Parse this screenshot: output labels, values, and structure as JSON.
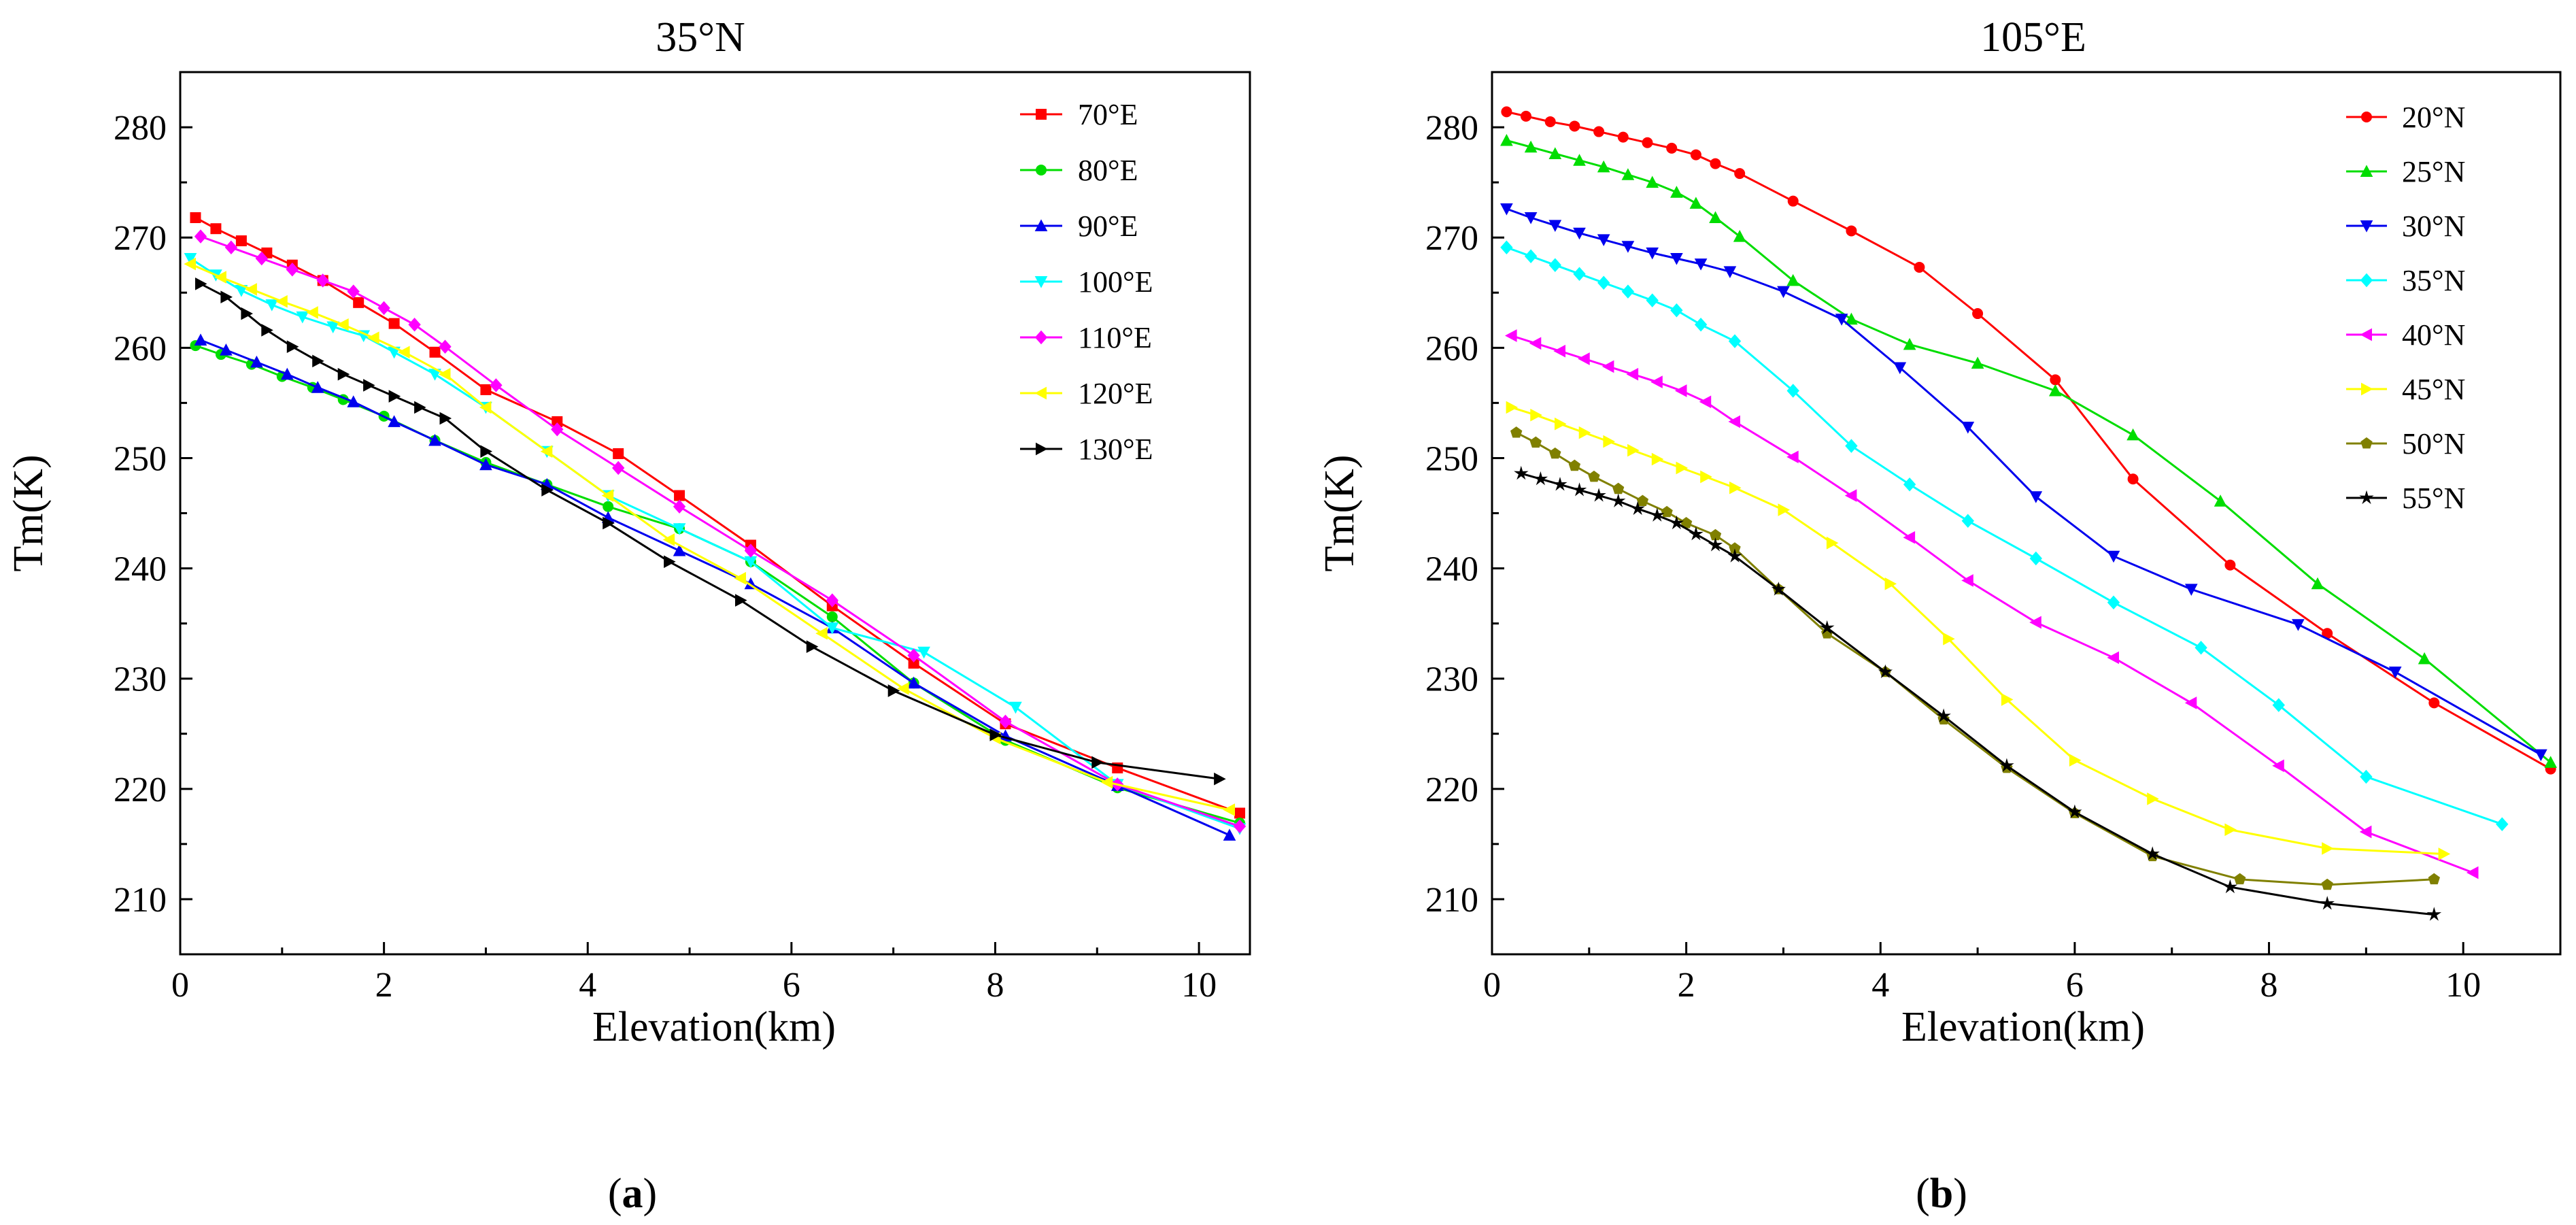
{
  "chart_data": [
    {
      "type": "line",
      "title": "35°N",
      "caption": {
        "open": "(",
        "letter": "a",
        "close": ")"
      },
      "xlabel": "Elevation(km)",
      "ylabel": "Tm(K)",
      "xlim": [
        0,
        10.5
      ],
      "ylim": [
        205,
        285
      ],
      "xticks": [
        0,
        2,
        4,
        6,
        8,
        10
      ],
      "yticks": [
        210,
        220,
        230,
        240,
        250,
        260,
        270,
        280
      ],
      "legend_position": "top-right",
      "series": [
        {
          "name": "70°E",
          "color": "#ff0000",
          "marker": "square",
          "x": [
            0.15,
            0.35,
            0.6,
            0.85,
            1.1,
            1.4,
            1.75,
            2.1,
            2.5,
            3.0,
            3.7,
            4.3,
            4.9,
            5.6,
            6.4,
            7.2,
            8.1,
            9.2,
            10.4
          ],
          "y": [
            271.8,
            270.8,
            269.7,
            268.6,
            267.5,
            266.1,
            264.1,
            262.2,
            259.6,
            256.2,
            253.3,
            250.4,
            246.6,
            242.1,
            236.6,
            231.4,
            225.9,
            221.9,
            217.8
          ]
        },
        {
          "name": "80°E",
          "color": "#00dd00",
          "marker": "circle",
          "x": [
            0.15,
            0.4,
            0.7,
            1.0,
            1.3,
            1.6,
            2.0,
            2.5,
            3.0,
            3.6,
            4.2,
            4.9,
            5.6,
            6.4,
            7.2,
            8.1,
            9.2,
            10.4
          ],
          "y": [
            260.2,
            259.4,
            258.5,
            257.4,
            256.4,
            255.3,
            253.8,
            251.6,
            249.6,
            247.6,
            245.6,
            243.6,
            240.6,
            235.6,
            229.6,
            224.4,
            220.1,
            216.9
          ]
        },
        {
          "name": "90°E",
          "color": "#0000ee",
          "marker": "triangle-up",
          "x": [
            0.2,
            0.45,
            0.75,
            1.05,
            1.35,
            1.7,
            2.1,
            2.5,
            3.0,
            3.6,
            4.2,
            4.9,
            5.6,
            6.4,
            7.2,
            8.1,
            9.2,
            10.3
          ],
          "y": [
            260.7,
            259.8,
            258.7,
            257.6,
            256.4,
            255.1,
            253.3,
            251.6,
            249.4,
            247.6,
            244.6,
            241.6,
            238.6,
            234.6,
            229.6,
            224.8,
            220.3,
            215.8
          ]
        },
        {
          "name": "100°E",
          "color": "#00ffff",
          "marker": "triangle-down",
          "x": [
            0.1,
            0.35,
            0.6,
            0.9,
            1.2,
            1.5,
            1.8,
            2.1,
            2.5,
            3.0,
            3.6,
            4.2,
            4.9,
            5.6,
            6.4,
            7.3,
            8.2,
            9.2,
            10.4
          ],
          "y": [
            268.1,
            266.6,
            265.2,
            263.9,
            262.8,
            261.9,
            261.1,
            259.6,
            257.6,
            254.6,
            250.6,
            246.6,
            243.6,
            240.6,
            234.6,
            232.4,
            227.4,
            220.4,
            216.4
          ]
        },
        {
          "name": "110°E",
          "color": "#ff00ff",
          "marker": "diamond",
          "x": [
            0.2,
            0.5,
            0.8,
            1.1,
            1.4,
            1.7,
            2.0,
            2.3,
            2.6,
            3.1,
            3.7,
            4.3,
            4.9,
            5.6,
            6.4,
            7.2,
            8.1,
            9.2,
            10.4
          ],
          "y": [
            270.1,
            269.1,
            268.1,
            267.1,
            266.1,
            265.1,
            263.6,
            262.1,
            260.1,
            256.6,
            252.6,
            249.1,
            245.6,
            241.6,
            237.1,
            232.1,
            226.1,
            220.4,
            216.6
          ]
        },
        {
          "name": "120°E",
          "color": "#ffff00",
          "marker": "triangle-left",
          "x": [
            0.1,
            0.4,
            0.7,
            1.0,
            1.3,
            1.6,
            1.9,
            2.2,
            2.6,
            3.0,
            3.6,
            4.2,
            4.8,
            5.5,
            6.3,
            7.1,
            8.0,
            9.1,
            10.3
          ],
          "y": [
            267.6,
            266.4,
            265.3,
            264.2,
            263.2,
            262.1,
            260.9,
            259.6,
            257.6,
            254.6,
            250.6,
            246.6,
            242.6,
            239.1,
            234.1,
            229.1,
            224.6,
            220.6,
            218.1
          ]
        },
        {
          "name": "130°E",
          "color": "#000000",
          "marker": "triangle-right",
          "x": [
            0.2,
            0.45,
            0.65,
            0.85,
            1.1,
            1.35,
            1.6,
            1.85,
            2.1,
            2.35,
            2.6,
            3.0,
            3.6,
            4.2,
            4.8,
            5.5,
            6.2,
            7.0,
            8.0,
            9.0,
            10.2
          ],
          "y": [
            265.8,
            264.6,
            263.1,
            261.6,
            260.1,
            258.8,
            257.6,
            256.6,
            255.6,
            254.6,
            253.6,
            250.6,
            247.1,
            244.1,
            240.6,
            237.1,
            232.9,
            228.9,
            224.9,
            222.4,
            220.9
          ]
        }
      ]
    },
    {
      "type": "line",
      "title": "105°E",
      "caption": {
        "open": "(",
        "letter": "b",
        "close": ")"
      },
      "xlabel": "Elevation(km)",
      "ylabel": "Tm(K)",
      "xlim": [
        0,
        11
      ],
      "ylim": [
        205,
        285
      ],
      "xticks": [
        0,
        2,
        4,
        6,
        8,
        10
      ],
      "yticks": [
        210,
        220,
        230,
        240,
        250,
        260,
        270,
        280
      ],
      "legend_position": "top-right",
      "series": [
        {
          "name": "20°N",
          "color": "#ff0000",
          "marker": "circle",
          "x": [
            0.15,
            0.35,
            0.6,
            0.85,
            1.1,
            1.35,
            1.6,
            1.85,
            2.1,
            2.3,
            2.55,
            3.1,
            3.7,
            4.4,
            5.0,
            5.8,
            6.6,
            7.6,
            8.6,
            9.7,
            10.9
          ],
          "y": [
            281.4,
            281.0,
            280.5,
            280.1,
            279.6,
            279.1,
            278.6,
            278.1,
            277.5,
            276.7,
            275.8,
            273.3,
            270.6,
            267.3,
            263.1,
            257.1,
            248.1,
            240.3,
            234.1,
            227.8,
            221.8
          ]
        },
        {
          "name": "25°N",
          "color": "#00dd00",
          "marker": "triangle-up",
          "x": [
            0.15,
            0.4,
            0.65,
            0.9,
            1.15,
            1.4,
            1.65,
            1.9,
            2.1,
            2.3,
            2.55,
            3.1,
            3.7,
            4.3,
            5.0,
            5.8,
            6.6,
            7.5,
            8.5,
            9.6,
            10.9
          ],
          "y": [
            278.8,
            278.2,
            277.6,
            277.0,
            276.4,
            275.7,
            275.0,
            274.1,
            273.1,
            271.8,
            270.1,
            266.1,
            262.6,
            260.3,
            258.6,
            256.1,
            252.1,
            246.1,
            238.6,
            231.8,
            222.4
          ]
        },
        {
          "name": "30°N",
          "color": "#0000ee",
          "marker": "triangle-down",
          "x": [
            0.15,
            0.4,
            0.65,
            0.9,
            1.15,
            1.4,
            1.65,
            1.9,
            2.15,
            2.45,
            3.0,
            3.6,
            4.2,
            4.9,
            5.6,
            6.4,
            7.2,
            8.3,
            9.3,
            10.8
          ],
          "y": [
            272.6,
            271.8,
            271.1,
            270.4,
            269.8,
            269.2,
            268.6,
            268.1,
            267.6,
            266.9,
            265.1,
            262.6,
            258.2,
            252.8,
            246.5,
            241.1,
            238.1,
            234.9,
            230.6,
            223.1
          ]
        },
        {
          "name": "35°N",
          "color": "#00ffff",
          "marker": "diamond",
          "x": [
            0.15,
            0.4,
            0.65,
            0.9,
            1.15,
            1.4,
            1.65,
            1.9,
            2.15,
            2.5,
            3.1,
            3.7,
            4.3,
            4.9,
            5.6,
            6.4,
            7.3,
            8.1,
            9.0,
            10.4
          ],
          "y": [
            269.1,
            268.3,
            267.5,
            266.7,
            265.9,
            265.1,
            264.3,
            263.4,
            262.1,
            260.6,
            256.1,
            251.1,
            247.6,
            244.3,
            240.9,
            236.9,
            232.8,
            227.6,
            221.1,
            216.8
          ]
        },
        {
          "name": "40°N",
          "color": "#ff00ff",
          "marker": "triangle-left",
          "x": [
            0.2,
            0.45,
            0.7,
            0.95,
            1.2,
            1.45,
            1.7,
            1.95,
            2.2,
            2.5,
            3.1,
            3.7,
            4.3,
            4.9,
            5.6,
            6.4,
            7.2,
            8.1,
            9.0,
            10.1
          ],
          "y": [
            261.1,
            260.4,
            259.7,
            259.0,
            258.3,
            257.6,
            256.9,
            256.1,
            255.1,
            253.3,
            250.1,
            246.6,
            242.8,
            238.9,
            235.1,
            231.9,
            227.8,
            222.1,
            216.1,
            212.4
          ]
        },
        {
          "name": "45°N",
          "color": "#ffff00",
          "marker": "triangle-right",
          "x": [
            0.2,
            0.45,
            0.7,
            0.95,
            1.2,
            1.45,
            1.7,
            1.95,
            2.2,
            2.5,
            3.0,
            3.5,
            4.1,
            4.7,
            5.3,
            6.0,
            6.8,
            7.6,
            8.6,
            9.8
          ],
          "y": [
            254.6,
            253.9,
            253.1,
            252.3,
            251.5,
            250.7,
            249.9,
            249.1,
            248.3,
            247.3,
            245.3,
            242.3,
            238.6,
            233.6,
            228.1,
            222.6,
            219.1,
            216.3,
            214.6,
            214.1
          ]
        },
        {
          "name": "50°N",
          "color": "#808000",
          "marker": "pentagon",
          "x": [
            0.25,
            0.45,
            0.65,
            0.85,
            1.05,
            1.3,
            1.55,
            1.8,
            2.0,
            2.3,
            2.5,
            2.95,
            3.45,
            4.05,
            4.65,
            5.3,
            6.0,
            6.8,
            7.7,
            8.6,
            9.7
          ],
          "y": [
            252.3,
            251.4,
            250.4,
            249.3,
            248.3,
            247.2,
            246.1,
            245.1,
            244.1,
            243.0,
            241.8,
            238.1,
            234.1,
            230.6,
            226.3,
            221.9,
            217.8,
            213.9,
            211.8,
            211.3,
            211.8
          ]
        },
        {
          "name": "55°N",
          "color": "#000000",
          "marker": "star",
          "x": [
            0.3,
            0.5,
            0.7,
            0.9,
            1.1,
            1.3,
            1.5,
            1.7,
            1.9,
            2.1,
            2.3,
            2.5,
            2.95,
            3.45,
            4.05,
            4.65,
            5.3,
            6.0,
            6.8,
            7.6,
            8.6,
            9.7
          ],
          "y": [
            248.6,
            248.1,
            247.6,
            247.1,
            246.6,
            246.1,
            245.4,
            244.8,
            244.1,
            243.1,
            242.1,
            241.1,
            238.1,
            234.6,
            230.6,
            226.6,
            222.1,
            217.9,
            214.1,
            211.1,
            209.6,
            208.6
          ]
        }
      ]
    }
  ]
}
